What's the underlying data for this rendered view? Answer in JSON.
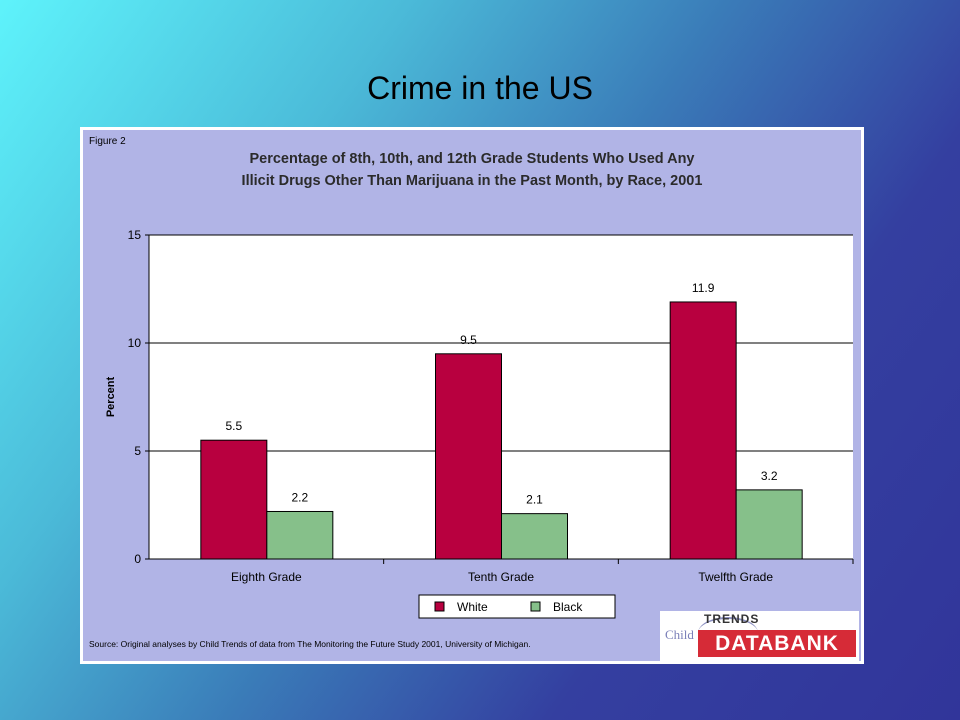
{
  "slide": {
    "title": "Crime in the US"
  },
  "figure": {
    "label": "Figure 2",
    "source": "Source: Original analyses by Child Trends of data from The Monitoring the Future Study 2001, University of Michigan.",
    "logo": {
      "prefix": "Child",
      "top": "TRENDS",
      "main": "DATABANK"
    }
  },
  "chart_data": {
    "type": "bar",
    "title_lines": [
      "Percentage of 8th, 10th, and 12th Grade Students Who Used Any",
      "Illicit Drugs Other Than Marijuana in the Past Month, by Race, 2001"
    ],
    "xlabel": "",
    "ylabel": "Percent",
    "ylim": [
      0,
      15
    ],
    "yticks": [
      0,
      5,
      10,
      15
    ],
    "grid": true,
    "legend_position": "bottom",
    "categories": [
      "Eighth Grade",
      "Tenth Grade",
      "Twelfth Grade"
    ],
    "series": [
      {
        "name": "White",
        "values": [
          5.5,
          9.5,
          11.9
        ],
        "color": "#b8003f"
      },
      {
        "name": "Black",
        "values": [
          2.2,
          2.1,
          3.2
        ],
        "color": "#86c08a"
      }
    ]
  }
}
